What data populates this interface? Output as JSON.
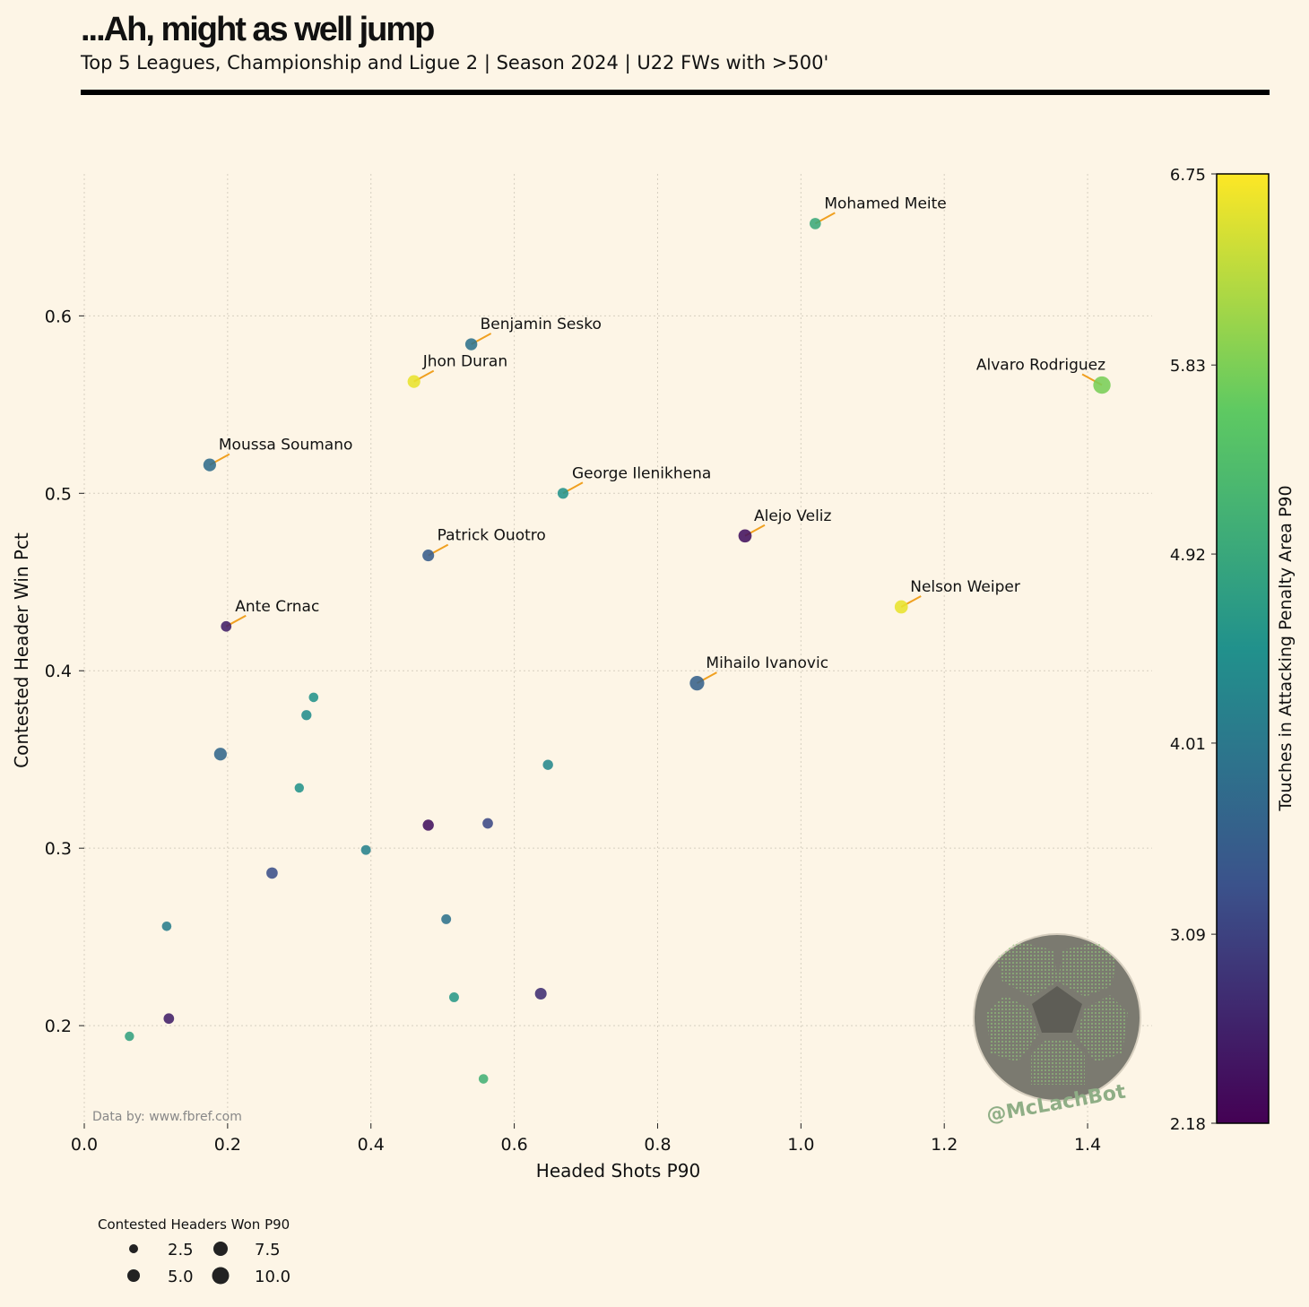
{
  "header": {
    "title": "...Ah, might as well jump",
    "subtitle": "Top 5 Leagues, Championship and Ligue 2 | Season 2024 | U22 FWs with >500'"
  },
  "source_note": "Data by: www.fbref.com",
  "watermark": {
    "handle": "@McLachBot",
    "icon": "soccer-ball-icon"
  },
  "size_legend": {
    "title": "Contested Headers Won P90",
    "entries": [
      "2.5",
      "5.0",
      "7.5",
      "10.0"
    ]
  },
  "colors": {
    "background": "#fdf5e6",
    "annotation_line": "#f0a020",
    "colormap": [
      "#440154",
      "#3b528b",
      "#21918c",
      "#5ec962",
      "#fde725"
    ]
  },
  "chart_data": {
    "type": "scatter",
    "xlabel": "Headed Shots P90",
    "ylabel": "Contested Header Win Pct",
    "colorbar_label": "Touches in Attacking Penalty Area P90",
    "xlim": [
      0.0,
      1.49
    ],
    "ylim": [
      0.145,
      0.68
    ],
    "xticks": [
      "0.0",
      "0.2",
      "0.4",
      "0.6",
      "0.8",
      "1.0",
      "1.2",
      "1.4"
    ],
    "yticks": [
      "0.2",
      "0.3",
      "0.4",
      "0.5",
      "0.6"
    ],
    "colorbar_range": [
      2.18,
      6.75
    ],
    "colorbar_ticks": [
      "2.18",
      "3.09",
      "4.01",
      "4.92",
      "5.83",
      "6.75"
    ],
    "grid": true,
    "points": [
      {
        "name": "Mohamed Meite",
        "x": 1.02,
        "y": 0.652,
        "size": 3.2,
        "color": 4.95
      },
      {
        "name": "Benjamin Sesko",
        "x": 0.54,
        "y": 0.584,
        "size": 3.8,
        "color": 3.9
      },
      {
        "name": "Jhon Duran",
        "x": 0.46,
        "y": 0.563,
        "size": 4.5,
        "color": 6.6
      },
      {
        "name": "Alvaro Rodriguez",
        "x": 1.42,
        "y": 0.561,
        "size": 10.5,
        "color": 5.8
      },
      {
        "name": "Moussa Soumano",
        "x": 0.175,
        "y": 0.516,
        "size": 4.5,
        "color": 3.8
      },
      {
        "name": "George Ilenikhena",
        "x": 0.668,
        "y": 0.5,
        "size": 2.8,
        "color": 4.5
      },
      {
        "name": "Alejo Veliz",
        "x": 0.922,
        "y": 0.476,
        "size": 5.0,
        "color": 2.4
      },
      {
        "name": "Patrick Ouotro",
        "x": 0.48,
        "y": 0.465,
        "size": 3.5,
        "color": 3.5
      },
      {
        "name": "Nelson Weiper",
        "x": 1.14,
        "y": 0.436,
        "size": 5.0,
        "color": 6.6
      },
      {
        "name": "Ante Crnac",
        "x": 0.198,
        "y": 0.425,
        "size": 2.5,
        "color": 2.6
      },
      {
        "name": "Mihailo Ivanovic",
        "x": 0.855,
        "y": 0.393,
        "size": 6.5,
        "color": 3.6
      },
      {
        "name": "",
        "x": 0.32,
        "y": 0.385,
        "size": 1.8,
        "color": 4.5
      },
      {
        "name": "",
        "x": 0.31,
        "y": 0.375,
        "size": 2.2,
        "color": 4.4
      },
      {
        "name": "",
        "x": 0.19,
        "y": 0.353,
        "size": 4.5,
        "color": 3.7
      },
      {
        "name": "",
        "x": 0.647,
        "y": 0.347,
        "size": 2.3,
        "color": 4.3
      },
      {
        "name": "",
        "x": 0.3,
        "y": 0.334,
        "size": 1.7,
        "color": 4.5
      },
      {
        "name": "",
        "x": 0.48,
        "y": 0.313,
        "size": 3.0,
        "color": 2.4
      },
      {
        "name": "",
        "x": 0.563,
        "y": 0.314,
        "size": 2.5,
        "color": 3.2
      },
      {
        "name": "",
        "x": 0.393,
        "y": 0.299,
        "size": 2.0,
        "color": 4.2
      },
      {
        "name": "",
        "x": 0.262,
        "y": 0.286,
        "size": 3.2,
        "color": 3.3
      },
      {
        "name": "",
        "x": 0.505,
        "y": 0.26,
        "size": 2.0,
        "color": 3.9
      },
      {
        "name": "",
        "x": 0.115,
        "y": 0.256,
        "size": 1.8,
        "color": 4.1
      },
      {
        "name": "",
        "x": 0.637,
        "y": 0.218,
        "size": 3.5,
        "color": 2.8
      },
      {
        "name": "",
        "x": 0.516,
        "y": 0.216,
        "size": 2.0,
        "color": 4.6
      },
      {
        "name": "",
        "x": 0.118,
        "y": 0.204,
        "size": 2.5,
        "color": 2.6
      },
      {
        "name": "",
        "x": 0.063,
        "y": 0.194,
        "size": 1.7,
        "color": 4.8
      },
      {
        "name": "",
        "x": 0.557,
        "y": 0.17,
        "size": 1.8,
        "color": 5.1
      }
    ]
  }
}
